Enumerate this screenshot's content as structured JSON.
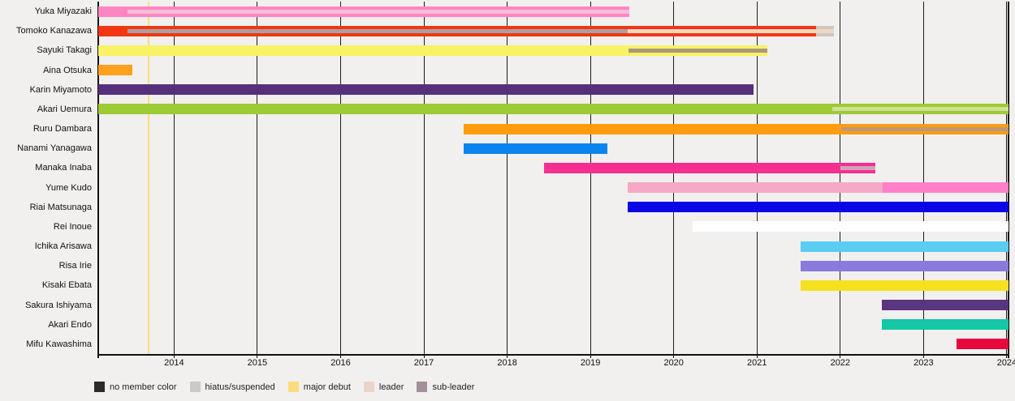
{
  "chart_data": {
    "type": "gantt",
    "title": "",
    "x_axis": {
      "min": 2013.09,
      "max": 2024.02,
      "ticks": [
        2014,
        2015,
        2016,
        2017,
        2018,
        2019,
        2020,
        2021,
        2022,
        2023,
        2024
      ]
    },
    "events": [
      {
        "name": "major debut",
        "year": 2013.69,
        "color": "#fbdd7a"
      }
    ],
    "members": [
      {
        "name": "Yuka Miyazaki",
        "segments": [
          {
            "from": 2013.09,
            "to": 2019.47,
            "color": "#ff85c2"
          }
        ],
        "overlays": [
          {
            "type": "leader",
            "from": 2013.44,
            "to": 2019.47,
            "color": "#f7bcd6"
          }
        ]
      },
      {
        "name": "Tomoko Kanazawa",
        "segments": [
          {
            "from": 2013.09,
            "to": 2021.71,
            "color": "#f23513"
          },
          {
            "from": 2021.71,
            "to": 2021.92,
            "color": "#cdc7c0",
            "type": "hiatus"
          }
        ],
        "overlays": [
          {
            "type": "sub-leader",
            "from": 2013.44,
            "to": 2019.45,
            "color": "#aba09d"
          },
          {
            "type": "leader",
            "from": 2019.45,
            "to": 2021.92,
            "color": "#f0d6c3"
          }
        ]
      },
      {
        "name": "Sayuki Takagi",
        "segments": [
          {
            "from": 2013.09,
            "to": 2021.12,
            "color": "#f8f266"
          }
        ],
        "overlays": [
          {
            "type": "hiatus",
            "from": 2019.46,
            "to": 2021.12,
            "color": "#ab9878"
          }
        ]
      },
      {
        "name": "Aina Otsuka",
        "segments": [
          {
            "from": 2013.09,
            "to": 2013.5,
            "color": "#ffa01e"
          }
        ],
        "overlays": []
      },
      {
        "name": "Karin Miyamoto",
        "segments": [
          {
            "from": 2013.09,
            "to": 2020.96,
            "color": "#56307d"
          }
        ],
        "overlays": []
      },
      {
        "name": "Akari Uemura",
        "segments": [
          {
            "from": 2013.09,
            "to": 2024.02,
            "color": "#9ccb35"
          }
        ],
        "overlays": [
          {
            "type": "leader",
            "from": 2021.9,
            "to": 2024.02,
            "color": "#cde093"
          }
        ]
      },
      {
        "name": "Ruru Dambara",
        "segments": [
          {
            "from": 2017.48,
            "to": 2024.02,
            "color": "#ff9d0f"
          }
        ],
        "overlays": [
          {
            "type": "sub-leader",
            "from": 2022.01,
            "to": 2024.02,
            "color": "#be9877"
          }
        ]
      },
      {
        "name": "Nanami Yanagawa",
        "segments": [
          {
            "from": 2017.48,
            "to": 2019.2,
            "color": "#0a85ef"
          }
        ],
        "overlays": []
      },
      {
        "name": "Manaka Inaba",
        "segments": [
          {
            "from": 2018.44,
            "to": 2022.42,
            "color": "#f52f90"
          }
        ],
        "overlays": [
          {
            "type": "hiatus",
            "from": 2022.0,
            "to": 2022.42,
            "color": "#d1a4b9"
          }
        ]
      },
      {
        "name": "Yume Kudo",
        "segments": [
          {
            "from": 2019.45,
            "to": 2022.51,
            "color": "#f5a9c6"
          },
          {
            "from": 2022.51,
            "to": 2024.02,
            "color": "#ff7fc9"
          }
        ],
        "overlays": []
      },
      {
        "name": "Riai Matsunaga",
        "segments": [
          {
            "from": 2019.45,
            "to": 2024.02,
            "color": "#0b06e6"
          }
        ],
        "overlays": []
      },
      {
        "name": "Rei Inoue",
        "segments": [
          {
            "from": 2020.23,
            "to": 2024.02,
            "color": "#ffffff"
          }
        ],
        "overlays": []
      },
      {
        "name": "Ichika Arisawa",
        "segments": [
          {
            "from": 2021.52,
            "to": 2024.02,
            "color": "#59cdf2"
          }
        ],
        "overlays": []
      },
      {
        "name": "Risa Irie",
        "segments": [
          {
            "from": 2021.52,
            "to": 2024.02,
            "color": "#8a7adc"
          }
        ],
        "overlays": []
      },
      {
        "name": "Kisaki Ebata",
        "segments": [
          {
            "from": 2021.52,
            "to": 2024.02,
            "color": "#f6e11f"
          }
        ],
        "overlays": []
      },
      {
        "name": "Sakura Ishiyama",
        "segments": [
          {
            "from": 2022.5,
            "to": 2024.02,
            "color": "#5a3580"
          }
        ],
        "overlays": []
      },
      {
        "name": "Akari Endo",
        "segments": [
          {
            "from": 2022.5,
            "to": 2024.02,
            "color": "#14c7a6"
          }
        ],
        "overlays": []
      },
      {
        "name": "Mifu Kawashima",
        "segments": [
          {
            "from": 2023.4,
            "to": 2024.02,
            "color": "#e9083b"
          }
        ],
        "overlays": []
      }
    ],
    "legend": [
      {
        "label": "no member color",
        "color": "#2b2b2b"
      },
      {
        "label": "hiatus/suspended",
        "color": "#c9c9c9"
      },
      {
        "label": "major debut",
        "color": "#fadc7d"
      },
      {
        "label": "leader",
        "color": "#ead6c8"
      },
      {
        "label": "sub-leader",
        "color": "#a3909a"
      }
    ],
    "legend_position": "bottom",
    "grid": true
  }
}
